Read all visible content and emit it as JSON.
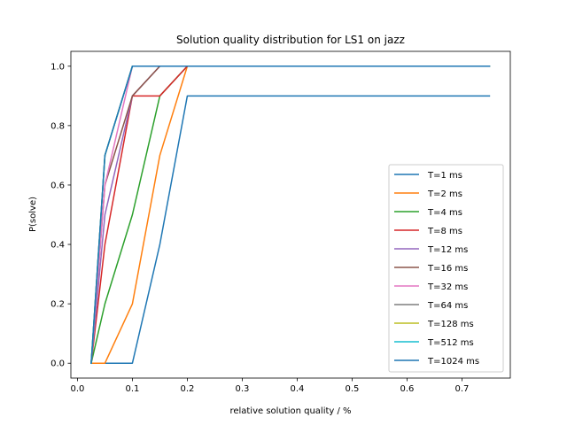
{
  "chart_data": {
    "type": "line",
    "title": "Solution quality distribution for LS1 on jazz",
    "xlabel": "relative solution quality / %",
    "ylabel": "P(solve)",
    "xlim": [
      -0.012,
      0.788
    ],
    "ylim": [
      -0.05,
      1.05
    ],
    "xticks": [
      0.0,
      0.1,
      0.2,
      0.3,
      0.4,
      0.5,
      0.6,
      0.7
    ],
    "xtick_labels": [
      "0.0",
      "0.1",
      "0.2",
      "0.3",
      "0.4",
      "0.5",
      "0.6",
      "0.7"
    ],
    "yticks": [
      0.0,
      0.2,
      0.4,
      0.6,
      0.8,
      1.0
    ],
    "ytick_labels": [
      "0.0",
      "0.2",
      "0.4",
      "0.6",
      "0.8",
      "1.0"
    ],
    "grid": false,
    "legend_position": "lower-right",
    "series": [
      {
        "name": "T=1 ms",
        "color": "#1f77b4",
        "x": [
          0.025,
          0.05,
          0.1,
          0.15,
          0.2,
          0.75
        ],
        "y": [
          0.0,
          0.0,
          0.0,
          0.4,
          0.9,
          0.9
        ]
      },
      {
        "name": "T=2 ms",
        "color": "#ff7f0e",
        "x": [
          0.025,
          0.05,
          0.1,
          0.15,
          0.2,
          0.75
        ],
        "y": [
          0.0,
          0.0,
          0.2,
          0.7,
          1.0,
          1.0
        ]
      },
      {
        "name": "T=4 ms",
        "color": "#2ca02c",
        "x": [
          0.025,
          0.05,
          0.1,
          0.15,
          0.2,
          0.75
        ],
        "y": [
          0.0,
          0.2,
          0.5,
          0.9,
          1.0,
          1.0
        ]
      },
      {
        "name": "T=8 ms",
        "color": "#d62728",
        "x": [
          0.025,
          0.05,
          0.1,
          0.15,
          0.2,
          0.75
        ],
        "y": [
          0.0,
          0.4,
          0.9,
          0.9,
          1.0,
          1.0
        ]
      },
      {
        "name": "T=12 ms",
        "color": "#9467bd",
        "x": [
          0.025,
          0.05,
          0.1,
          0.15,
          0.2,
          0.75
        ],
        "y": [
          0.0,
          0.5,
          0.9,
          1.0,
          1.0,
          1.0
        ]
      },
      {
        "name": "T=16 ms",
        "color": "#8c564b",
        "x": [
          0.025,
          0.05,
          0.1,
          0.15,
          0.2,
          0.75
        ],
        "y": [
          0.0,
          0.6,
          0.9,
          1.0,
          1.0,
          1.0
        ]
      },
      {
        "name": "T=32 ms",
        "color": "#e377c2",
        "x": [
          0.025,
          0.05,
          0.1,
          0.15,
          0.2,
          0.75
        ],
        "y": [
          0.0,
          0.6,
          1.0,
          1.0,
          1.0,
          1.0
        ]
      },
      {
        "name": "T=64 ms",
        "color": "#7f7f7f",
        "x": [
          0.025,
          0.05,
          0.1,
          0.15,
          0.2,
          0.75
        ],
        "y": [
          0.0,
          0.7,
          1.0,
          1.0,
          1.0,
          1.0
        ]
      },
      {
        "name": "T=128 ms",
        "color": "#bcbd22",
        "x": [
          0.025,
          0.05,
          0.1,
          0.15,
          0.2,
          0.75
        ],
        "y": [
          0.0,
          0.7,
          1.0,
          1.0,
          1.0,
          1.0
        ]
      },
      {
        "name": "T=512 ms",
        "color": "#17becf",
        "x": [
          0.025,
          0.05,
          0.1,
          0.15,
          0.2,
          0.75
        ],
        "y": [
          0.0,
          0.7,
          1.0,
          1.0,
          1.0,
          1.0
        ]
      },
      {
        "name": "T=1024 ms",
        "color": "#1f77b4",
        "x": [
          0.025,
          0.05,
          0.1,
          0.15,
          0.2,
          0.75
        ],
        "y": [
          0.0,
          0.7,
          1.0,
          1.0,
          1.0,
          1.0
        ]
      }
    ]
  }
}
